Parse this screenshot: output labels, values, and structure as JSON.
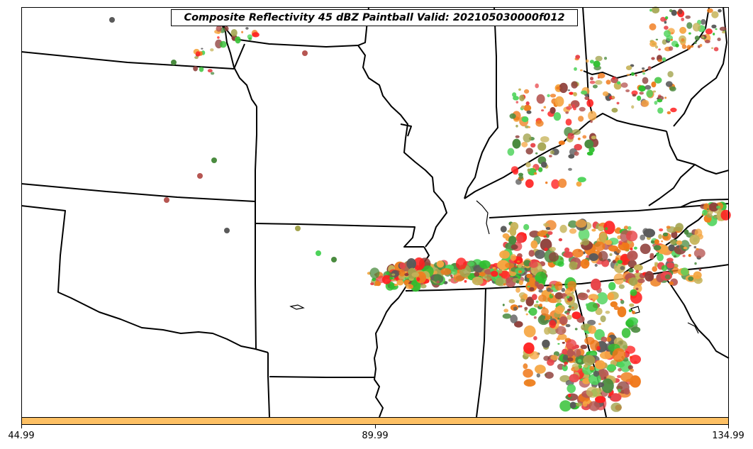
{
  "title": "Composite Reflectivity 45 dBZ Paintball Valid: 202105030000f012",
  "colorbar": {
    "color": "#fdc064",
    "ticks": [
      "44.99",
      "89.99",
      "134.99"
    ]
  },
  "paint_colors": [
    "#4dd35a",
    "#e8454a",
    "#b65652",
    "#f5a642",
    "#ee8020",
    "#a3a44e",
    "#4a8b3f",
    "#5a5a5a",
    "#ff2020",
    "#2fbf2f",
    "#8e3f3a",
    "#c7b45a",
    "#f07818"
  ]
}
